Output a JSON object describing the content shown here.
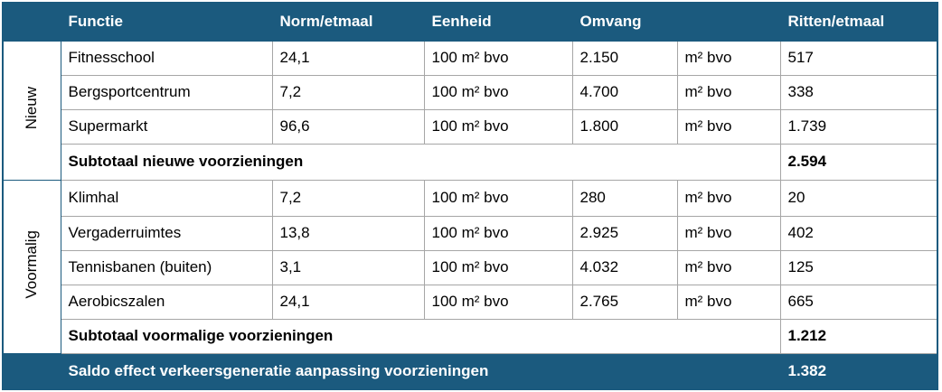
{
  "header": [
    "Functie",
    "Norm/etmaal",
    "Eenheid",
    "Omvang",
    "Ritten/etmaal"
  ],
  "groups": [
    {
      "label": "Nieuw",
      "rows": [
        [
          "Fitnesschool",
          "24,1",
          "100 m² bvo",
          "2.150",
          "m² bvo",
          "517"
        ],
        [
          "Bergsportcentrum",
          "7,2",
          "100 m² bvo",
          "4.700",
          "m² bvo",
          "338"
        ],
        [
          "Supermarkt",
          "96,6",
          "100 m² bvo",
          "1.800",
          "m² bvo",
          "1.739"
        ]
      ],
      "subtotal": {
        "label": "Subtotaal nieuwe voorzieningen",
        "value": "2.594"
      }
    },
    {
      "label": "Voormalig",
      "rows": [
        [
          "Klimhal",
          "7,2",
          "100 m² bvo",
          "280",
          "m² bvo",
          "20"
        ],
        [
          "Vergaderruimtes",
          "13,8",
          "100 m² bvo",
          "2.925",
          "m² bvo",
          "402"
        ],
        [
          "Tennisbanen (buiten)",
          "3,1",
          "100 m² bvo",
          "4.032",
          "m² bvo",
          "125"
        ],
        [
          "Aerobicszalen",
          "24,1",
          "100 m² bvo",
          "2.765",
          "m² bvo",
          "665"
        ]
      ],
      "subtotal": {
        "label": "Subtotaal voormalige voorzieningen",
        "value": "1.212"
      }
    }
  ],
  "total": {
    "label": "Saldo effect verkeersgeneratie aanpassing voorzieningen",
    "value": "1.382"
  }
}
